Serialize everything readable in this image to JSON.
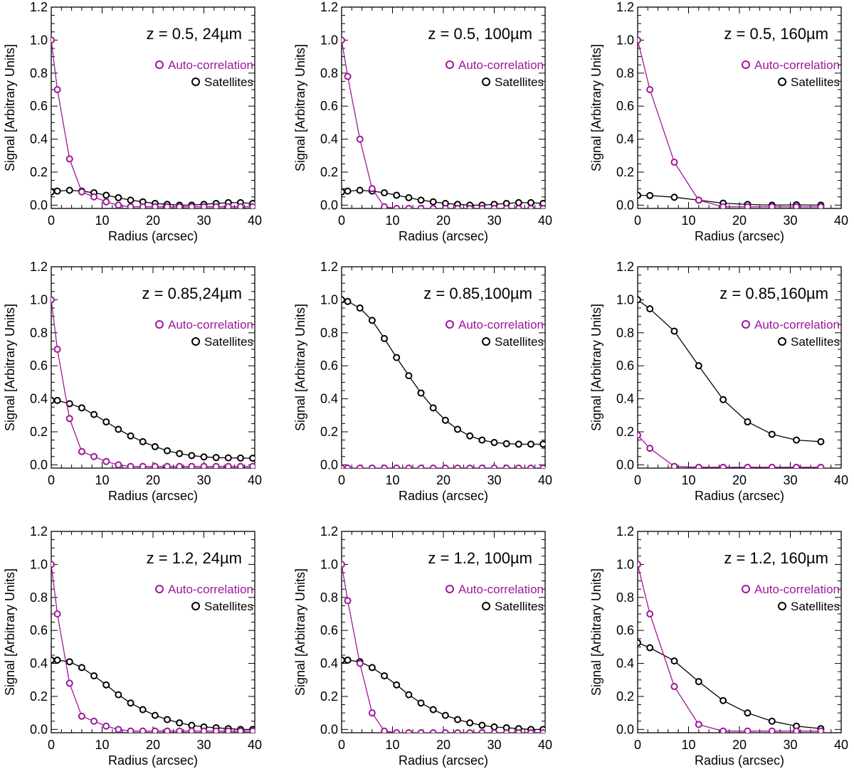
{
  "colors": {
    "autocorrelation": "#a0169b",
    "satellites": "#000000",
    "axes": "#000000",
    "background": "#ffffff"
  },
  "chart_data": [
    {
      "type": "line",
      "title": "z = 0.5, 24µm",
      "xlabel": "Radius (arcsec)",
      "ylabel": "Signal  [Arbitrary Units]",
      "xlim": [
        0,
        40
      ],
      "ylim": [
        -0.02,
        1.2
      ],
      "xticks": [
        "0",
        "10",
        "20",
        "30",
        "40"
      ],
      "yticks": [
        "0.0",
        "0.2",
        "0.4",
        "0.6",
        "0.8",
        "1.0",
        "1.2"
      ],
      "legend": [
        "Auto-correlation",
        "Satellites"
      ],
      "series": [
        {
          "name": "Auto-correlation",
          "color": "#a0169b",
          "x": [
            0,
            1.2,
            3.6,
            6.0,
            8.4,
            10.8,
            13.2,
            15.6,
            18.0,
            20.4,
            22.8,
            25.2,
            27.6,
            30.0,
            32.4,
            34.8,
            37.2,
            39.6
          ],
          "y": [
            1.0,
            0.7,
            0.28,
            0.08,
            0.05,
            0.02,
            0.0,
            -0.01,
            -0.01,
            -0.01,
            -0.01,
            -0.01,
            -0.01,
            -0.01,
            -0.01,
            -0.01,
            -0.01,
            -0.01
          ]
        },
        {
          "name": "Satellites",
          "color": "#000000",
          "x": [
            0,
            1.2,
            3.6,
            6.0,
            8.4,
            10.8,
            13.2,
            15.6,
            18.0,
            20.4,
            22.8,
            25.2,
            27.6,
            30.0,
            32.4,
            34.8,
            37.2,
            39.6
          ],
          "y": [
            0.08,
            0.085,
            0.09,
            0.085,
            0.075,
            0.06,
            0.045,
            0.03,
            0.02,
            0.01,
            0.005,
            0.0,
            0.0,
            0.005,
            0.01,
            0.015,
            0.015,
            0.01
          ]
        }
      ]
    },
    {
      "type": "line",
      "title": "z = 0.5, 100µm",
      "xlabel": "Radius (arcsec)",
      "ylabel": "Signal  [Arbitrary Units]",
      "xlim": [
        0,
        40
      ],
      "ylim": [
        -0.02,
        1.2
      ],
      "xticks": [
        "0",
        "10",
        "20",
        "30",
        "40"
      ],
      "yticks": [
        "0.0",
        "0.2",
        "0.4",
        "0.6",
        "0.8",
        "1.0",
        "1.2"
      ],
      "legend": [
        "Auto-correlation",
        "Satellites"
      ],
      "series": [
        {
          "name": "Auto-correlation",
          "color": "#a0169b",
          "x": [
            0,
            1.2,
            3.6,
            6.0,
            8.4,
            10.8,
            13.2,
            15.6,
            18.0,
            20.4,
            22.8,
            25.2,
            27.6,
            30.0,
            32.4,
            34.8,
            37.2,
            39.6
          ],
          "y": [
            1.0,
            0.78,
            0.4,
            0.1,
            -0.01,
            -0.02,
            -0.02,
            -0.02,
            -0.02,
            -0.02,
            -0.02,
            -0.02,
            -0.02,
            -0.02,
            -0.02,
            -0.02,
            -0.02,
            -0.02
          ]
        },
        {
          "name": "Satellites",
          "color": "#000000",
          "x": [
            0,
            1.2,
            3.6,
            6.0,
            8.4,
            10.8,
            13.2,
            15.6,
            18.0,
            20.4,
            22.8,
            25.2,
            27.6,
            30.0,
            32.4,
            34.8,
            37.2,
            39.6
          ],
          "y": [
            0.08,
            0.085,
            0.09,
            0.085,
            0.075,
            0.06,
            0.045,
            0.03,
            0.02,
            0.01,
            0.005,
            0.0,
            0.0,
            0.005,
            0.01,
            0.015,
            0.015,
            0.01
          ]
        }
      ]
    },
    {
      "type": "line",
      "title": "z = 0.5, 160µm",
      "xlabel": "Radius (arcsec)",
      "ylabel": "Signal  [Arbitrary Units]",
      "xlim": [
        0,
        40
      ],
      "ylim": [
        -0.02,
        1.2
      ],
      "xticks": [
        "0",
        "10",
        "20",
        "30",
        "40"
      ],
      "yticks": [
        "0.0",
        "0.2",
        "0.4",
        "0.6",
        "0.8",
        "1.0",
        "1.2"
      ],
      "legend": [
        "Auto-correlation",
        "Satellites"
      ],
      "series": [
        {
          "name": "Auto-correlation",
          "color": "#a0169b",
          "x": [
            0,
            2.4,
            7.2,
            12.0,
            16.8,
            21.6,
            26.4,
            31.2,
            36.0
          ],
          "y": [
            1.0,
            0.7,
            0.26,
            0.03,
            -0.01,
            -0.01,
            -0.01,
            -0.01,
            -0.01
          ]
        },
        {
          "name": "Satellites",
          "color": "#000000",
          "x": [
            0,
            2.4,
            7.2,
            12.0,
            16.8,
            21.6,
            26.4,
            31.2,
            36.0
          ],
          "y": [
            0.06,
            0.058,
            0.048,
            0.03,
            0.012,
            0.004,
            0.0,
            0.002,
            0.0
          ]
        }
      ]
    },
    {
      "type": "line",
      "title": "z = 0.85,24µm",
      "xlabel": "Radius (arcsec)",
      "ylabel": "Signal  [Arbitrary Units]",
      "xlim": [
        0,
        40
      ],
      "ylim": [
        -0.02,
        1.2
      ],
      "xticks": [
        "0",
        "10",
        "20",
        "30",
        "40"
      ],
      "yticks": [
        "0.0",
        "0.2",
        "0.4",
        "0.6",
        "0.8",
        "1.0",
        "1.2"
      ],
      "legend": [
        "Auto-correlation",
        "Satellites"
      ],
      "series": [
        {
          "name": "Auto-correlation",
          "color": "#a0169b",
          "x": [
            0,
            1.2,
            3.6,
            6.0,
            8.4,
            10.8,
            13.2,
            15.6,
            18.0,
            20.4,
            22.8,
            25.2,
            27.6,
            30.0,
            32.4,
            34.8,
            37.2,
            39.6
          ],
          "y": [
            1.0,
            0.7,
            0.28,
            0.08,
            0.05,
            0.02,
            0.0,
            -0.01,
            -0.01,
            -0.01,
            -0.01,
            -0.01,
            -0.01,
            -0.01,
            -0.01,
            -0.01,
            -0.01,
            -0.01
          ]
        },
        {
          "name": "Satellites",
          "color": "#000000",
          "x": [
            0,
            1.2,
            3.6,
            6.0,
            8.4,
            10.8,
            13.2,
            15.6,
            18.0,
            20.4,
            22.8,
            25.2,
            27.6,
            30.0,
            32.4,
            34.8,
            37.2,
            39.6
          ],
          "y": [
            0.39,
            0.39,
            0.37,
            0.345,
            0.305,
            0.26,
            0.215,
            0.175,
            0.14,
            0.11,
            0.085,
            0.068,
            0.056,
            0.048,
            0.044,
            0.042,
            0.041,
            0.04
          ]
        }
      ]
    },
    {
      "type": "line",
      "title": "z = 0.85,100µm",
      "xlabel": "Radius (arcsec)",
      "ylabel": "Signal  [Arbitrary Units]",
      "xlim": [
        0,
        40
      ],
      "ylim": [
        -0.02,
        1.2
      ],
      "xticks": [
        "0",
        "10",
        "20",
        "30",
        "40"
      ],
      "yticks": [
        "0.0",
        "0.2",
        "0.4",
        "0.6",
        "0.8",
        "1.0",
        "1.2"
      ],
      "legend": [
        "Auto-correlation",
        "Satellites"
      ],
      "series": [
        {
          "name": "Auto-correlation",
          "color": "#a0169b",
          "x": [
            0,
            1.2,
            3.6,
            6.0,
            8.4,
            10.8,
            13.2,
            15.6,
            18.0,
            20.4,
            22.8,
            25.2,
            27.6,
            30.0,
            32.4,
            34.8,
            37.2,
            39.6
          ],
          "y": [
            -0.02,
            -0.02,
            -0.02,
            -0.02,
            -0.02,
            -0.02,
            -0.02,
            -0.02,
            -0.02,
            -0.02,
            -0.02,
            -0.02,
            -0.02,
            -0.02,
            -0.02,
            -0.02,
            -0.02,
            -0.02
          ]
        },
        {
          "name": "Satellites",
          "color": "#000000",
          "x": [
            0,
            1.2,
            3.6,
            6.0,
            8.4,
            10.8,
            13.2,
            15.6,
            18.0,
            20.4,
            22.8,
            25.2,
            27.6,
            30.0,
            32.4,
            34.8,
            37.2,
            39.6
          ],
          "y": [
            1.0,
            0.99,
            0.95,
            0.875,
            0.765,
            0.65,
            0.54,
            0.435,
            0.345,
            0.27,
            0.215,
            0.175,
            0.15,
            0.135,
            0.128,
            0.125,
            0.125,
            0.125
          ]
        }
      ]
    },
    {
      "type": "line",
      "title": "z = 0.85,160µm",
      "xlabel": "Radius (arcsec)",
      "ylabel": "Signal  [Arbitrary Units]",
      "xlim": [
        0,
        40
      ],
      "ylim": [
        -0.02,
        1.2
      ],
      "xticks": [
        "0",
        "10",
        "20",
        "30",
        "40"
      ],
      "yticks": [
        "0.0",
        "0.2",
        "0.4",
        "0.6",
        "0.8",
        "1.0",
        "1.2"
      ],
      "legend": [
        "Auto-correlation",
        "Satellites"
      ],
      "series": [
        {
          "name": "Auto-correlation",
          "color": "#a0169b",
          "x": [
            0,
            2.4,
            7.2,
            12.0,
            16.8,
            21.6,
            26.4,
            31.2,
            36.0
          ],
          "y": [
            0.18,
            0.1,
            -0.01,
            -0.015,
            -0.015,
            -0.015,
            -0.015,
            -0.015,
            -0.015
          ]
        },
        {
          "name": "Satellites",
          "color": "#000000",
          "x": [
            0,
            2.4,
            7.2,
            12.0,
            16.8,
            21.6,
            26.4,
            31.2,
            36.0
          ],
          "y": [
            1.0,
            0.945,
            0.81,
            0.6,
            0.395,
            0.26,
            0.185,
            0.15,
            0.14
          ]
        }
      ]
    },
    {
      "type": "line",
      "title": "z = 1.2, 24µm",
      "xlabel": "Radius (arcsec)",
      "ylabel": "Signal  [Arbitrary Units]",
      "xlim": [
        0,
        40
      ],
      "ylim": [
        -0.02,
        1.2
      ],
      "xticks": [
        "0",
        "10",
        "20",
        "30",
        "40"
      ],
      "yticks": [
        "0.0",
        "0.2",
        "0.4",
        "0.6",
        "0.8",
        "1.0",
        "1.2"
      ],
      "legend": [
        "Auto-correlation",
        "Satellites"
      ],
      "series": [
        {
          "name": "Auto-correlation",
          "color": "#a0169b",
          "x": [
            0,
            1.2,
            3.6,
            6.0,
            8.4,
            10.8,
            13.2,
            15.6,
            18.0,
            20.4,
            22.8,
            25.2,
            27.6,
            30.0,
            32.4,
            34.8,
            37.2,
            39.6
          ],
          "y": [
            1.0,
            0.7,
            0.28,
            0.08,
            0.05,
            0.02,
            0.0,
            -0.01,
            -0.01,
            -0.01,
            -0.01,
            -0.01,
            -0.01,
            -0.01,
            -0.01,
            -0.01,
            -0.01,
            -0.01
          ]
        },
        {
          "name": "Satellites",
          "color": "#000000",
          "x": [
            0,
            1.2,
            3.6,
            6.0,
            8.4,
            10.8,
            13.2,
            15.6,
            18.0,
            20.4,
            22.8,
            25.2,
            27.6,
            30.0,
            32.4,
            34.8,
            37.2,
            39.6
          ],
          "y": [
            0.42,
            0.42,
            0.41,
            0.375,
            0.325,
            0.27,
            0.21,
            0.16,
            0.12,
            0.085,
            0.06,
            0.04,
            0.025,
            0.015,
            0.01,
            0.005,
            0.0,
            0.0
          ]
        }
      ]
    },
    {
      "type": "line",
      "title": "z = 1.2, 100µm",
      "xlabel": "Radius (arcsec)",
      "ylabel": "Signal  [Arbitrary Units]",
      "xlim": [
        0,
        40
      ],
      "ylim": [
        -0.02,
        1.2
      ],
      "xticks": [
        "0",
        "10",
        "20",
        "30",
        "40"
      ],
      "yticks": [
        "0.0",
        "0.2",
        "0.4",
        "0.6",
        "0.8",
        "1.0",
        "1.2"
      ],
      "legend": [
        "Auto-correlation",
        "Satellites"
      ],
      "series": [
        {
          "name": "Auto-correlation",
          "color": "#a0169b",
          "x": [
            0,
            1.2,
            3.6,
            6.0,
            8.4,
            10.8,
            13.2,
            15.6,
            18.0,
            20.4,
            22.8,
            25.2,
            27.6,
            30.0,
            32.4,
            34.8,
            37.2,
            39.6
          ],
          "y": [
            1.0,
            0.78,
            0.4,
            0.1,
            -0.01,
            -0.02,
            -0.02,
            -0.02,
            -0.02,
            -0.02,
            -0.02,
            -0.02,
            -0.02,
            -0.02,
            -0.02,
            -0.02,
            -0.02,
            -0.02
          ]
        },
        {
          "name": "Satellites",
          "color": "#000000",
          "x": [
            0,
            1.2,
            3.6,
            6.0,
            8.4,
            10.8,
            13.2,
            15.6,
            18.0,
            20.4,
            22.8,
            25.2,
            27.6,
            30.0,
            32.4,
            34.8,
            37.2,
            39.6
          ],
          "y": [
            0.42,
            0.42,
            0.41,
            0.375,
            0.325,
            0.27,
            0.21,
            0.16,
            0.12,
            0.085,
            0.06,
            0.04,
            0.025,
            0.015,
            0.01,
            0.005,
            0.0,
            0.0
          ]
        }
      ]
    },
    {
      "type": "line",
      "title": "z = 1.2, 160µm",
      "xlabel": "Radius (arcsec)",
      "ylabel": "Signal  [Arbitrary Units]",
      "xlim": [
        0,
        40
      ],
      "ylim": [
        -0.02,
        1.2
      ],
      "xticks": [
        "0",
        "10",
        "20",
        "30",
        "40"
      ],
      "yticks": [
        "0.0",
        "0.2",
        "0.4",
        "0.6",
        "0.8",
        "1.0",
        "1.2"
      ],
      "legend": [
        "Auto-correlation",
        "Satellites"
      ],
      "series": [
        {
          "name": "Auto-correlation",
          "color": "#a0169b",
          "x": [
            0,
            2.4,
            7.2,
            12.0,
            16.8,
            21.6,
            26.4,
            31.2,
            36.0
          ],
          "y": [
            1.0,
            0.7,
            0.26,
            0.03,
            -0.01,
            -0.01,
            -0.01,
            -0.01,
            -0.01
          ]
        },
        {
          "name": "Satellites",
          "color": "#000000",
          "x": [
            0,
            2.4,
            7.2,
            12.0,
            16.8,
            21.6,
            26.4,
            31.2,
            36.0
          ],
          "y": [
            0.525,
            0.495,
            0.415,
            0.29,
            0.175,
            0.1,
            0.05,
            0.02,
            0.005
          ]
        }
      ]
    }
  ]
}
